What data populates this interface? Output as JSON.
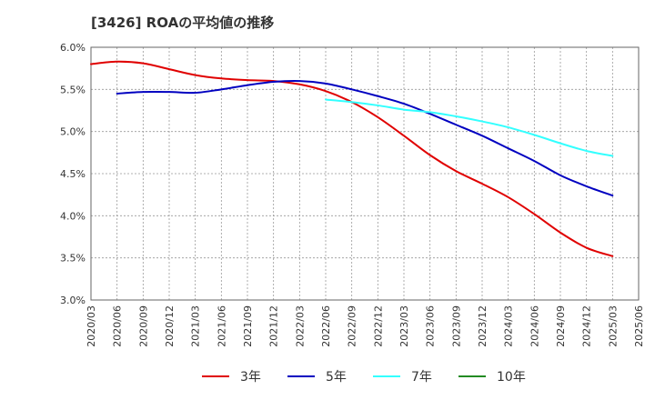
{
  "chart_data": {
    "type": "line",
    "title": "[3426]  ROAの平均値の推移",
    "xlabel": "",
    "ylabel": "",
    "ylim": [
      3.0,
      6.0
    ],
    "grid": true,
    "legend_position": "bottom",
    "y_ticks": [
      3.0,
      3.5,
      4.0,
      4.5,
      5.0,
      5.5,
      6.0
    ],
    "y_tick_labels": [
      "3.0%",
      "3.5%",
      "4.0%",
      "4.5%",
      "5.0%",
      "5.5%",
      "6.0%"
    ],
    "categories": [
      "2020/03",
      "2020/06",
      "2020/09",
      "2020/12",
      "2021/03",
      "2021/06",
      "2021/09",
      "2021/12",
      "2022/03",
      "2022/06",
      "2022/09",
      "2022/12",
      "2023/03",
      "2023/06",
      "2023/09",
      "2023/12",
      "2024/03",
      "2024/06",
      "2024/09",
      "2024/12",
      "2025/03",
      "2025/06"
    ],
    "series": [
      {
        "name": "3年",
        "color": "#e00000",
        "values": [
          5.8,
          5.83,
          5.81,
          5.74,
          5.67,
          5.63,
          5.61,
          5.6,
          5.56,
          5.48,
          5.35,
          5.17,
          4.95,
          4.72,
          4.53,
          4.38,
          4.22,
          4.02,
          3.8,
          3.62,
          3.52,
          null
        ]
      },
      {
        "name": "5年",
        "color": "#0000c0",
        "values": [
          null,
          5.45,
          5.47,
          5.47,
          5.46,
          5.5,
          5.55,
          5.59,
          5.6,
          5.57,
          5.5,
          5.42,
          5.33,
          5.21,
          5.08,
          4.95,
          4.8,
          4.65,
          4.48,
          4.35,
          4.24,
          null
        ]
      },
      {
        "name": "7年",
        "color": "#33ffff",
        "values": [
          null,
          null,
          null,
          null,
          null,
          null,
          null,
          null,
          null,
          5.38,
          5.35,
          5.31,
          5.26,
          5.23,
          5.18,
          5.12,
          5.05,
          4.96,
          4.86,
          4.77,
          4.71,
          null
        ]
      },
      {
        "name": "10年",
        "color": "#228b22",
        "values": [
          null,
          null,
          null,
          null,
          null,
          null,
          null,
          null,
          null,
          null,
          null,
          null,
          null,
          null,
          null,
          null,
          null,
          null,
          null,
          null,
          null,
          null
        ]
      }
    ]
  }
}
